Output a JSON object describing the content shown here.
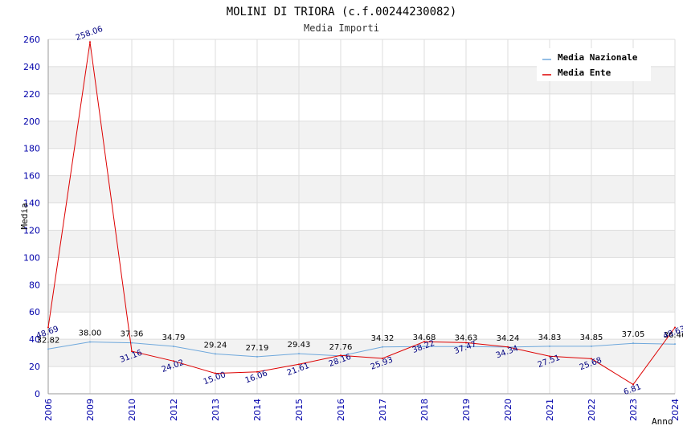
{
  "chart_data": {
    "type": "line",
    "title": "MOLINI DI TRIORA (c.f.00244230082)",
    "subtitle": "Media Importi",
    "xlabel": "Anno",
    "ylabel": "Media",
    "ylim": [
      0,
      260
    ],
    "yticks": [
      "0",
      "20",
      "40",
      "60",
      "80",
      "100",
      "120",
      "140",
      "160",
      "180",
      "200",
      "220",
      "240",
      "260"
    ],
    "categories": [
      "2006",
      "2009",
      "2010",
      "2012",
      "2013",
      "2014",
      "2015",
      "2016",
      "2017",
      "2018",
      "2019",
      "2020",
      "2021",
      "2022",
      "2023",
      "2024"
    ],
    "grid": true,
    "legend_position": "top-right",
    "series": [
      {
        "name": "Media Nazionale",
        "color": "#6fa8dc",
        "label_color": "#000000",
        "values": [
          32.82,
          38.0,
          37.36,
          34.79,
          29.24,
          27.19,
          29.43,
          27.76,
          34.32,
          34.68,
          34.63,
          34.24,
          34.83,
          34.85,
          37.05,
          36.46
        ],
        "labels": [
          "32.82",
          "38.00",
          "37.36",
          "34.79",
          "29.24",
          "27.19",
          "29.43",
          "27.76",
          "34.32",
          "34.68",
          "34.63",
          "34.24",
          "34.83",
          "34.85",
          "37.05",
          "36.46"
        ]
      },
      {
        "name": "Media Ente",
        "color": "#dd0000",
        "label_color": "#000080",
        "values": [
          48.69,
          258.06,
          31.16,
          24.02,
          15.0,
          16.06,
          21.61,
          28.16,
          25.93,
          38.22,
          37.47,
          34.34,
          27.51,
          25.68,
          6.81,
          48.63
        ],
        "labels": [
          "48.69",
          "258.06",
          "31.16",
          "24.02",
          "15.00",
          "16.06",
          "21.61",
          "28.16",
          "25.93",
          "38.22",
          "37.47",
          "34.34",
          "27.51",
          "25.68",
          "6.81",
          "48.63"
        ]
      }
    ]
  }
}
